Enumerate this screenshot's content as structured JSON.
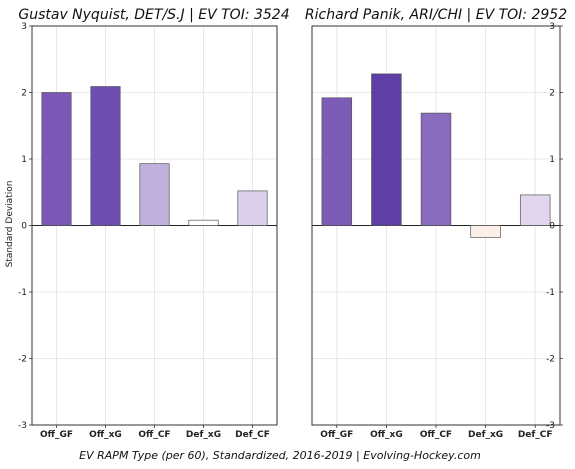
{
  "footer": "EV RAPM Type (per 60), Standardized, 2016-2019   |   Evolving-Hockey.com",
  "chart_data": [
    {
      "type": "bar",
      "title": "Gustav Nyquist, DET/S.J  |  EV TOI: 3524",
      "ylabel": "Standard Deviation",
      "categories": [
        "Off_GF",
        "Off_xG",
        "Off_CF",
        "Def_xG",
        "Def_CF"
      ],
      "values": [
        2.0,
        2.09,
        0.93,
        0.08,
        0.52
      ],
      "colors": [
        "#7b58b6",
        "#6e4db0",
        "#bfb0dc",
        "#ffffff",
        "#dcd1ea"
      ],
      "ylim": [
        -3,
        3
      ],
      "yticks": [
        -3,
        -2,
        -1,
        0,
        1,
        2,
        3
      ],
      "grid": true
    },
    {
      "type": "bar",
      "title": "Richard Panik, ARI/CHI  |  EV TOI: 2952",
      "ylabel": "",
      "categories": [
        "Off_GF",
        "Off_xG",
        "Off_CF",
        "Def_xG",
        "Def_CF"
      ],
      "values": [
        1.92,
        2.28,
        1.69,
        -0.18,
        0.46
      ],
      "colors": [
        "#7c5cb7",
        "#5e3fa6",
        "#8a6cbf",
        "#fcefe9",
        "#e1d6ee"
      ],
      "ylim": [
        -3,
        3
      ],
      "yticks": [
        -3,
        -2,
        -1,
        0,
        1,
        2,
        3
      ],
      "grid": true
    }
  ]
}
